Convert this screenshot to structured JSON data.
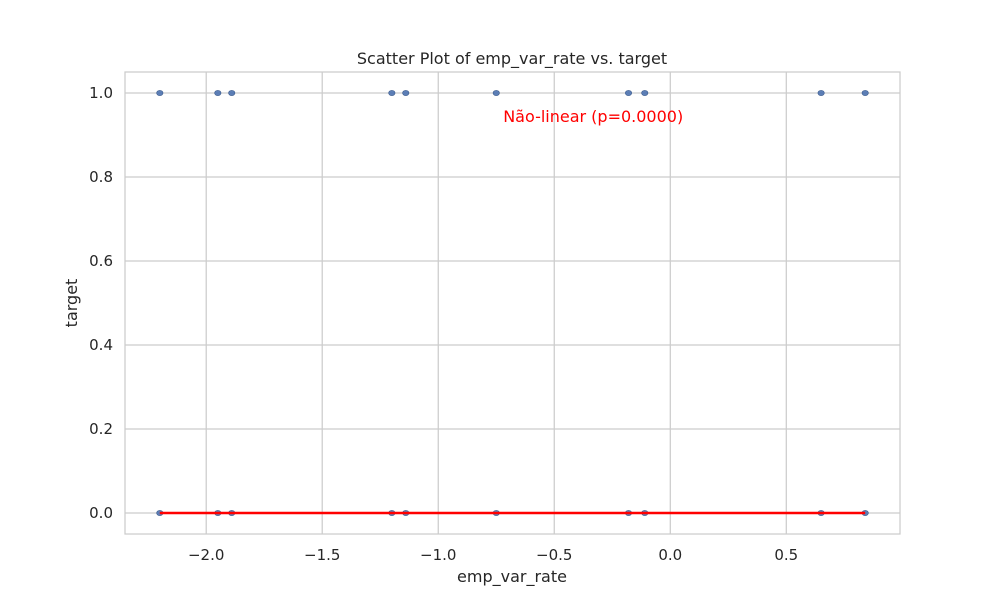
{
  "chart_data": {
    "type": "scatter",
    "title": "Scatter Plot of emp_var_rate vs. target",
    "xlabel": "emp_var_rate",
    "ylabel": "target",
    "xlim": [
      -2.35,
      0.99
    ],
    "ylim": [
      -0.05,
      1.05
    ],
    "x_ticks": [
      -2.0,
      -1.5,
      -1.0,
      -0.5,
      0.0,
      0.5
    ],
    "x_tick_labels": [
      "−2.0",
      "−1.5",
      "−1.0",
      "−0.5",
      "0.0",
      "0.5"
    ],
    "y_ticks": [
      0.0,
      0.2,
      0.4,
      0.6,
      0.8,
      1.0
    ],
    "y_tick_labels": [
      "0.0",
      "0.2",
      "0.4",
      "0.6",
      "0.8",
      "1.0"
    ],
    "grid": true,
    "point_color": "#4c72b0",
    "points": [
      {
        "x": -2.2,
        "y": 1
      },
      {
        "x": -1.95,
        "y": 1
      },
      {
        "x": -1.89,
        "y": 1
      },
      {
        "x": -1.2,
        "y": 1
      },
      {
        "x": -1.14,
        "y": 1
      },
      {
        "x": -0.75,
        "y": 1
      },
      {
        "x": -0.18,
        "y": 1
      },
      {
        "x": -0.11,
        "y": 1
      },
      {
        "x": 0.65,
        "y": 1
      },
      {
        "x": 0.84,
        "y": 1
      },
      {
        "x": -2.2,
        "y": 0
      },
      {
        "x": -1.95,
        "y": 0
      },
      {
        "x": -1.89,
        "y": 0
      },
      {
        "x": -1.2,
        "y": 0
      },
      {
        "x": -1.14,
        "y": 0
      },
      {
        "x": -0.75,
        "y": 0
      },
      {
        "x": -0.18,
        "y": 0
      },
      {
        "x": -0.11,
        "y": 0
      },
      {
        "x": 0.65,
        "y": 0
      },
      {
        "x": 0.84,
        "y": 0
      }
    ],
    "trend_line": {
      "color": "#ff0000",
      "x": [
        -2.2,
        0.84
      ],
      "y": [
        0.0,
        0.0
      ]
    },
    "annotation": {
      "text": "Não-linear (p=0.0000)",
      "x": -0.72,
      "y": 0.945,
      "color": "#ff0000"
    }
  }
}
